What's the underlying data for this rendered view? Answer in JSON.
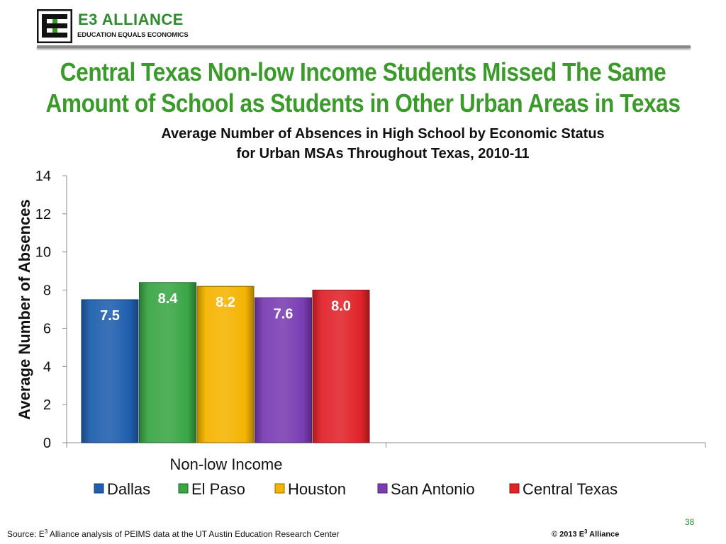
{
  "header": {
    "logo_top": "E3 ALLIANCE",
    "logo_bottom": "EDUCATION EQUALS ECONOMICS",
    "headline_line1": "Central Texas Non-low Income Students Missed The Same",
    "headline_line2": "Amount of School as Students in Other Urban Areas in Texas"
  },
  "colors": {
    "brand_green": "#3a9a2a",
    "page_number": "#2e9a2e"
  },
  "chart_data": {
    "type": "bar",
    "title_line1": "Average Number of Absences in High School by Economic Status",
    "title_line2": "for Urban MSAs Throughout Texas, 2010-11",
    "ylabel": "Average Number of Absences",
    "ylim": [
      0,
      14
    ],
    "yticks": [
      "0",
      "2",
      "4",
      "6",
      "8",
      "10",
      "12",
      "14"
    ],
    "categories": [
      "Non-low Income"
    ],
    "series": [
      {
        "name": "Dallas",
        "values": [
          7.5
        ],
        "label": "7.5",
        "color": "#1f5fae"
      },
      {
        "name": "El Paso",
        "values": [
          8.4
        ],
        "label": "8.4",
        "color": "#3aa646"
      },
      {
        "name": "Houston",
        "values": [
          8.2
        ],
        "label": "8.2",
        "color": "#f4b400"
      },
      {
        "name": "San Antonio",
        "values": [
          7.6
        ],
        "label": "7.6",
        "color": "#7a3db3"
      },
      {
        "name": "Central Texas",
        "values": [
          8.0
        ],
        "label": "8.0",
        "color": "#e0242a"
      }
    ],
    "legend_position": "bottom",
    "grid": false
  },
  "footer": {
    "source_prefix": "Source: E",
    "source_sup": "3",
    "source_rest": " Alliance analysis of PEIMS data at the UT Austin Education Research Center",
    "copyright_prefix": "© 2013 E",
    "copyright_sup": "3",
    "copyright_rest": " Alliance",
    "page_number": "38"
  }
}
